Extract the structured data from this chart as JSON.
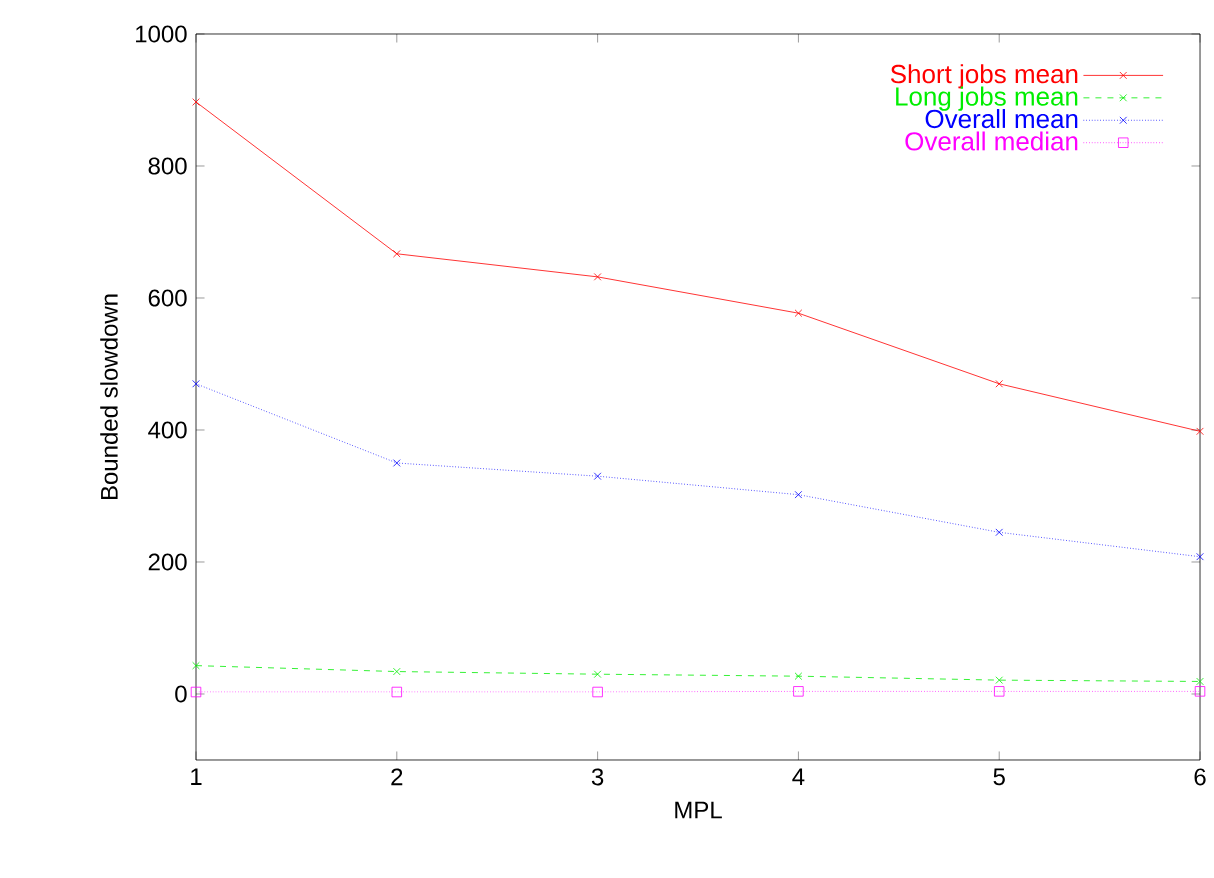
{
  "chart_data": {
    "type": "line",
    "xlabel": "MPL",
    "ylabel": "Bounded slowdown",
    "x": [
      1,
      2,
      3,
      4,
      5,
      6
    ],
    "series": [
      {
        "name": "Short jobs mean",
        "color": "#ff0000",
        "marker": "cross",
        "line_style": "solid",
        "values": [
          897,
          667,
          632,
          577,
          470,
          398
        ]
      },
      {
        "name": "Long jobs mean",
        "color": "#00ee00",
        "marker": "cross",
        "line_style": "dashed",
        "values": [
          43,
          34,
          30,
          27,
          21,
          19
        ]
      },
      {
        "name": "Overall mean",
        "color": "#0000ff",
        "marker": "cross",
        "line_style": "dotted",
        "values": [
          470,
          350,
          330,
          302,
          245,
          208
        ]
      },
      {
        "name": "Overall median",
        "color": "#ff00ff",
        "marker": "square",
        "line_style": "dotted",
        "values": [
          3,
          3,
          3,
          4,
          4,
          4
        ]
      }
    ],
    "xlim": [
      1,
      6
    ],
    "ylim": [
      -100,
      1000
    ],
    "xticks": [
      1,
      2,
      3,
      4,
      5,
      6
    ],
    "yticks": [
      0,
      200,
      400,
      600,
      800,
      1000
    ],
    "grid": false,
    "legend": "top right"
  }
}
